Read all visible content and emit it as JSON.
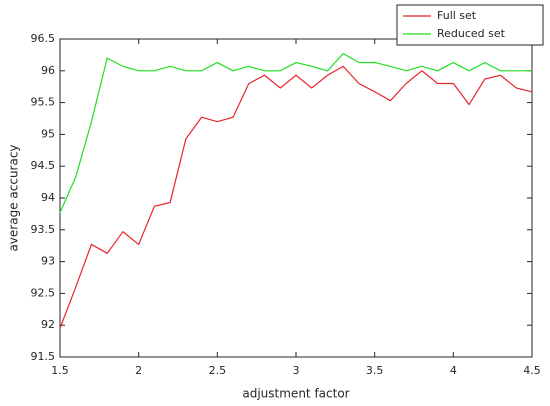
{
  "chart_data": {
    "type": "line",
    "xlabel": "adjustment factor",
    "ylabel": "average accuracy",
    "x": [
      1.5,
      1.6,
      1.7,
      1.8,
      1.9,
      2.0,
      2.1,
      2.2,
      2.3,
      2.4,
      2.5,
      2.6,
      2.7,
      2.8,
      2.9,
      3.0,
      3.1,
      3.2,
      3.3,
      3.4,
      3.5,
      3.6,
      3.7,
      3.8,
      3.9,
      4.0,
      4.1,
      4.2,
      4.3,
      4.4,
      4.5
    ],
    "series": [
      {
        "name": "Full set",
        "color": "#e8242c",
        "values": [
          91.95,
          92.6,
          93.27,
          93.13,
          93.47,
          93.27,
          93.87,
          93.93,
          94.93,
          95.27,
          95.2,
          95.27,
          95.8,
          95.93,
          95.73,
          95.93,
          95.73,
          95.93,
          96.07,
          95.8,
          95.67,
          95.53,
          95.8,
          96.0,
          95.8,
          95.8,
          95.47,
          95.87,
          95.93,
          95.73,
          95.67
        ]
      },
      {
        "name": "Reduced set",
        "color": "#22e022",
        "values": [
          93.77,
          94.33,
          95.2,
          96.2,
          96.07,
          96.0,
          96.0,
          96.07,
          96.0,
          96.0,
          96.13,
          96.0,
          96.07,
          96.0,
          96.0,
          96.13,
          96.07,
          96.0,
          96.27,
          96.13,
          96.13,
          96.07,
          96.0,
          96.07,
          96.0,
          96.13,
          96.0,
          96.13,
          96.0,
          96.0,
          96.0
        ]
      }
    ],
    "xlim": [
      1.5,
      4.5
    ],
    "xticks": [
      1.5,
      2,
      2.5,
      3,
      3.5,
      4,
      4.5
    ],
    "ylim": [
      91.5,
      96.5
    ],
    "yticks": [
      91.5,
      92,
      92.5,
      93,
      93.5,
      94,
      94.5,
      95,
      95.5,
      96,
      96.5
    ],
    "grid": false,
    "legend": "northeast"
  }
}
